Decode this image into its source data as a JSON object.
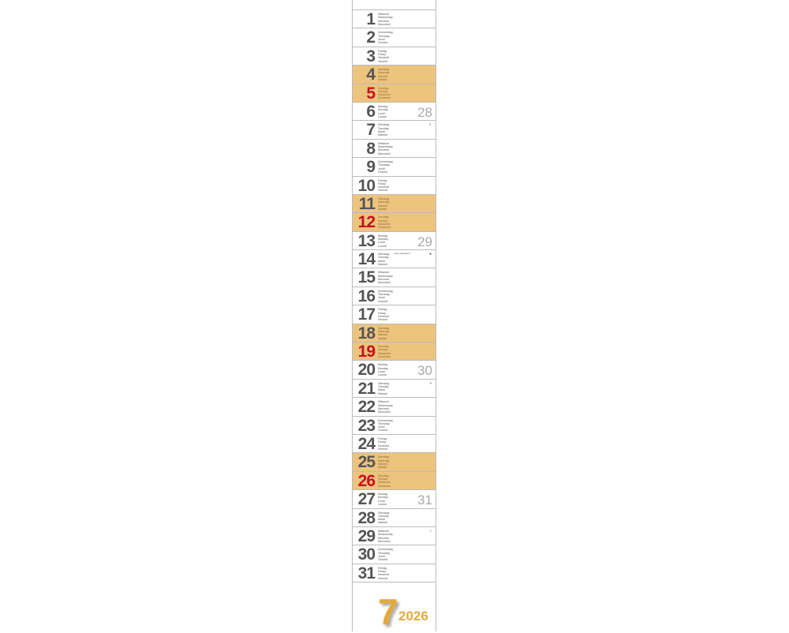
{
  "month": "7",
  "year": "2026",
  "colors": {
    "weekend": "#ecc47e",
    "sunday_number": "#c8101e",
    "accent": "#e5a93b"
  },
  "days": [
    {
      "d": "1",
      "names": [
        "Mittwoch",
        "Wednesday",
        "Mercredi",
        "Mercoledì"
      ]
    },
    {
      "d": "2",
      "names": [
        "Donnerstag",
        "Thursday",
        "Jeudi",
        "Giovedì"
      ]
    },
    {
      "d": "3",
      "names": [
        "Freitag",
        "Friday",
        "Vendredi",
        "Venerdì"
      ]
    },
    {
      "d": "4",
      "names": [
        "Samstag",
        "Saturday",
        "Samedi",
        "Sabato"
      ],
      "weekend": true
    },
    {
      "d": "5",
      "names": [
        "Sonntag",
        "Sunday",
        "Dimanche",
        "Domenica"
      ],
      "weekend": true,
      "sunday": true
    },
    {
      "d": "6",
      "names": [
        "Montag",
        "Monday",
        "Lundi",
        "Lunedì"
      ],
      "week": "28"
    },
    {
      "d": "7",
      "names": [
        "Dienstag",
        "Tuesday",
        "Mardi",
        "Martedì"
      ],
      "moon": "◐"
    },
    {
      "d": "8",
      "names": [
        "Mittwoch",
        "Wednesday",
        "Mercredi",
        "Mercoledì"
      ]
    },
    {
      "d": "9",
      "names": [
        "Donnerstag",
        "Thursday",
        "Jeudi",
        "Giovedì"
      ]
    },
    {
      "d": "10",
      "names": [
        "Freitag",
        "Friday",
        "Vendredi",
        "Venerdì"
      ]
    },
    {
      "d": "11",
      "names": [
        "Samstag",
        "Saturday",
        "Samedi",
        "Sabato"
      ],
      "weekend": true
    },
    {
      "d": "12",
      "names": [
        "Sonntag",
        "Sunday",
        "Dimanche",
        "Domenica"
      ],
      "weekend": true,
      "sunday": true
    },
    {
      "d": "13",
      "names": [
        "Montag",
        "Monday",
        "Lundi",
        "Lunedì"
      ],
      "week": "29"
    },
    {
      "d": "14",
      "names": [
        "Dienstag",
        "Tuesday",
        "Mardi",
        "Martedì"
      ],
      "moon": "●",
      "holiday": "Fête nationale F"
    },
    {
      "d": "15",
      "names": [
        "Mittwoch",
        "Wednesday",
        "Mercredi",
        "Mercoledì"
      ]
    },
    {
      "d": "16",
      "names": [
        "Donnerstag",
        "Thursday",
        "Jeudi",
        "Giovedì"
      ]
    },
    {
      "d": "17",
      "names": [
        "Freitag",
        "Friday",
        "Vendredi",
        "Venerdì"
      ]
    },
    {
      "d": "18",
      "names": [
        "Samstag",
        "Saturday",
        "Samedi",
        "Sabato"
      ],
      "weekend": true
    },
    {
      "d": "19",
      "names": [
        "Sonntag",
        "Sunday",
        "Dimanche",
        "Domenica"
      ],
      "weekend": true,
      "sunday": true
    },
    {
      "d": "20",
      "names": [
        "Montag",
        "Monday",
        "Lundi",
        "Lunedì"
      ],
      "week": "30"
    },
    {
      "d": "21",
      "names": [
        "Dienstag",
        "Tuesday",
        "Mardi",
        "Martedì"
      ],
      "moon": "◑"
    },
    {
      "d": "22",
      "names": [
        "Mittwoch",
        "Wednesday",
        "Mercredi",
        "Mercoledì"
      ]
    },
    {
      "d": "23",
      "names": [
        "Donnerstag",
        "Thursday",
        "Jeudi",
        "Giovedì"
      ]
    },
    {
      "d": "24",
      "names": [
        "Freitag",
        "Friday",
        "Vendredi",
        "Venerdì"
      ]
    },
    {
      "d": "25",
      "names": [
        "Samstag",
        "Saturday",
        "Samedi",
        "Sabato"
      ],
      "weekend": true
    },
    {
      "d": "26",
      "names": [
        "Sonntag",
        "Sunday",
        "Dimanche",
        "Domenica"
      ],
      "weekend": true,
      "sunday": true
    },
    {
      "d": "27",
      "names": [
        "Montag",
        "Monday",
        "Lundi",
        "Lunedì"
      ],
      "week": "31"
    },
    {
      "d": "28",
      "names": [
        "Dienstag",
        "Tuesday",
        "Mardi",
        "Martedì"
      ]
    },
    {
      "d": "29",
      "names": [
        "Mittwoch",
        "Wednesday",
        "Mercredi",
        "Mercoledì"
      ],
      "moon": "○"
    },
    {
      "d": "30",
      "names": [
        "Donnerstag",
        "Thursday",
        "Jeudi",
        "Giovedì"
      ]
    },
    {
      "d": "31",
      "names": [
        "Freitag",
        "Friday",
        "Vendredi",
        "Venerdì"
      ]
    }
  ]
}
